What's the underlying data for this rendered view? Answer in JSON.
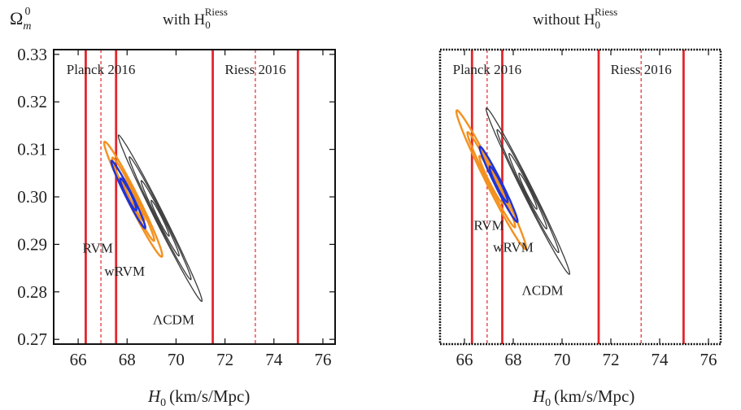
{
  "figure": {
    "ylabel_main": "Ω",
    "ylabel_sub": "m",
    "ylabel_sup": "0",
    "xlabel_italic": "H",
    "xlabel_sub": "0",
    "xlabel_units": "(km/s/Mpc)"
  },
  "colors": {
    "planck_riess_lines": "#e3262a",
    "RVM": "#1f33d6",
    "wRVM": "#f3911f",
    "LCDM": "#3a3a3a"
  },
  "chart_data": [
    {
      "type": "contour",
      "title_prefix": "with H",
      "title_sub": "0",
      "title_sup": "Riess",
      "xlim": [
        65,
        76.5
      ],
      "ylim": [
        0.269,
        0.331
      ],
      "xticks": [
        66,
        68,
        70,
        72,
        74,
        76
      ],
      "yticks": [
        0.27,
        0.28,
        0.29,
        0.3,
        0.31,
        0.32,
        0.33
      ],
      "ytick_labels": [
        "0.27",
        "0.28",
        "0.29",
        "0.30",
        "0.31",
        "0.32",
        "0.33"
      ],
      "bands": [
        {
          "label": "Planck 2016",
          "center": 66.93,
          "lower": 66.31,
          "upper": 67.55
        },
        {
          "label": "Riess 2016",
          "center": 73.24,
          "lower": 71.5,
          "upper": 74.98
        }
      ],
      "series": [
        {
          "name": "ΛCDM",
          "color_key": "LCDM",
          "center": [
            69.35,
            0.2955
          ],
          "levels": [
            {
              "a": 0.45,
              "b": 0.022,
              "angle": -0.98
            },
            {
              "a": 0.95,
              "b": 0.034,
              "angle": -0.98
            },
            {
              "a": 1.55,
              "b": 0.046,
              "angle": -0.98
            },
            {
              "a": 2.1,
              "b": 0.058,
              "angle": -0.98
            }
          ]
        },
        {
          "name": "wRVM",
          "color_key": "wRVM",
          "center": [
            68.25,
            0.2995
          ],
          "levels": [
            {
              "a": 0.55,
              "b": 0.03,
              "angle": -0.99
            },
            {
              "a": 1.05,
              "b": 0.045,
              "angle": -0.99
            },
            {
              "a": 1.45,
              "b": 0.065,
              "angle": -0.99
            }
          ]
        },
        {
          "name": "RVM",
          "color_key": "RVM",
          "center": [
            68.05,
            0.3005
          ],
          "levels": [
            {
              "a": 0.4,
              "b": 0.028,
              "angle": -0.99
            },
            {
              "a": 0.85,
              "b": 0.038,
              "angle": -0.99
            }
          ]
        }
      ],
      "annotations": [
        {
          "text": "RVM",
          "x": 66.8,
          "y": 0.2883
        },
        {
          "text": "wRVM",
          "x": 67.9,
          "y": 0.2834
        },
        {
          "text": "ΛCDM",
          "x": 69.9,
          "y": 0.2732
        }
      ]
    },
    {
      "type": "contour",
      "title_prefix": "without H",
      "title_sub": "0",
      "title_sup": "Riess",
      "xlim": [
        65,
        76.5
      ],
      "ylim": [
        0.2685,
        0.333
      ],
      "xticks": [
        66,
        68,
        70,
        72,
        74,
        76
      ],
      "yticks": [],
      "ytick_labels": [],
      "bands": [
        {
          "label": "Planck 2016",
          "center": 66.93,
          "lower": 66.31,
          "upper": 67.55
        },
        {
          "label": "Riess 2016",
          "center": 73.24,
          "lower": 71.5,
          "upper": 74.98
        }
      ],
      "series": [
        {
          "name": "ΛCDM",
          "color_key": "LCDM",
          "center": [
            68.6,
            0.302
          ],
          "levels": [
            {
              "a": 0.45,
              "b": 0.025,
              "angle": -0.98
            },
            {
              "a": 0.95,
              "b": 0.037,
              "angle": -0.98
            },
            {
              "a": 1.55,
              "b": 0.049,
              "angle": -0.98
            },
            {
              "a": 2.1,
              "b": 0.061,
              "angle": -0.98
            }
          ]
        },
        {
          "name": "wRVM",
          "color_key": "wRVM",
          "center": [
            67.1,
            0.3045
          ],
          "levels": [
            {
              "a": 0.6,
              "b": 0.032,
              "angle": -0.99
            },
            {
              "a": 1.2,
              "b": 0.048,
              "angle": -0.99
            },
            {
              "a": 1.75,
              "b": 0.07,
              "angle": -0.99
            }
          ]
        },
        {
          "name": "RVM",
          "color_key": "RVM",
          "center": [
            67.4,
            0.3035
          ],
          "levels": [
            {
              "a": 0.45,
              "b": 0.03,
              "angle": -0.99
            },
            {
              "a": 0.95,
              "b": 0.042,
              "angle": -0.99
            }
          ]
        }
      ],
      "annotations": [
        {
          "text": "RVM",
          "x": 67.0,
          "y": 0.2935
        },
        {
          "text": "wRVM",
          "x": 68.0,
          "y": 0.2887
        },
        {
          "text": "ΛCDM",
          "x": 69.2,
          "y": 0.2793
        }
      ]
    }
  ]
}
